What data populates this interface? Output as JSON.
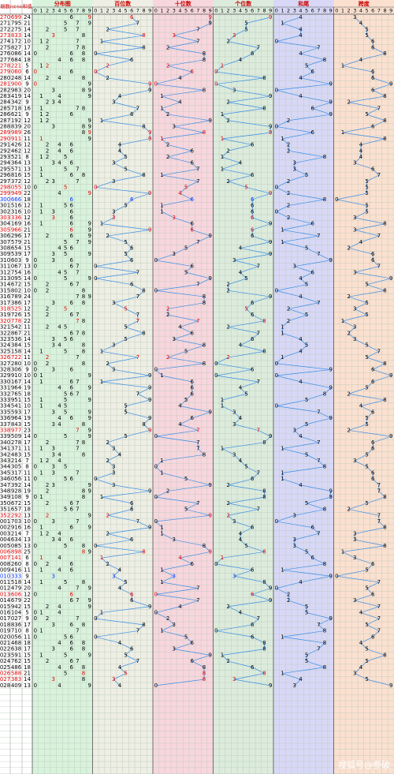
{
  "chart_data": {
    "type": "trend-table",
    "headers": {
      "period": "期数",
      "number": "开奖号码",
      "sum": "和值",
      "panels": [
        "分布图",
        "百位数",
        "十位数",
        "个位数",
        "和尾",
        "跨度"
      ]
    },
    "digits": [
      0,
      1,
      2,
      3,
      4,
      5,
      6,
      7,
      8,
      9
    ],
    "rows": [
      [
        "270",
        "699",
        24,
        6,
        9,
        9,
        4,
        3
      ],
      [
        "271",
        "795",
        21,
        7,
        9,
        5,
        1,
        4
      ],
      [
        "272",
        "275",
        14,
        2,
        7,
        5,
        4,
        5
      ],
      [
        "273",
        "833",
        14,
        8,
        3,
        3,
        4,
        5
      ],
      [
        "274",
        "172",
        10,
        1,
        7,
        2,
        0,
        6
      ],
      [
        "275",
        "827",
        17,
        8,
        2,
        7,
        7,
        6
      ],
      [
        "276",
        "086",
        14,
        0,
        8,
        6,
        4,
        8
      ],
      [
        "277",
        "684",
        18,
        6,
        8,
        4,
        8,
        4
      ],
      [
        "278",
        "221",
        5,
        2,
        2,
        1,
        5,
        1
      ],
      [
        "279",
        "060",
        6,
        0,
        6,
        0,
        6,
        6
      ],
      [
        "280",
        "248",
        14,
        2,
        4,
        8,
        4,
        6
      ],
      [
        "281",
        "900",
        9,
        9,
        0,
        0,
        9,
        9
      ],
      [
        "282",
        "983",
        20,
        9,
        8,
        3,
        0,
        6
      ],
      [
        "283",
        "419",
        14,
        4,
        1,
        9,
        4,
        8
      ],
      [
        "284",
        "342",
        9,
        3,
        4,
        2,
        9,
        2
      ],
      [
        "285",
        "718",
        16,
        7,
        1,
        8,
        6,
        7
      ],
      [
        "286",
        "621",
        9,
        6,
        2,
        1,
        9,
        5
      ],
      [
        "287",
        "192",
        12,
        1,
        9,
        2,
        2,
        8
      ],
      [
        "288",
        "839",
        20,
        8,
        3,
        9,
        0,
        6
      ],
      [
        "289",
        "989",
        26,
        9,
        8,
        9,
        6,
        1
      ],
      [
        "290",
        "911",
        11,
        9,
        1,
        1,
        1,
        8
      ],
      [
        "291",
        "426",
        12,
        4,
        2,
        6,
        2,
        4
      ],
      [
        "292",
        "462",
        12,
        4,
        6,
        2,
        2,
        4
      ],
      [
        "293",
        "521",
        8,
        5,
        2,
        1,
        8,
        4
      ],
      [
        "294",
        "364",
        13,
        3,
        6,
        4,
        3,
        3
      ],
      [
        "295",
        "571",
        13,
        5,
        7,
        1,
        3,
        6
      ],
      [
        "296",
        "816",
        15,
        8,
        1,
        6,
        5,
        7
      ],
      [
        "297",
        "372",
        12,
        3,
        7,
        2,
        2,
        5
      ],
      [
        "298",
        "055",
        10,
        0,
        5,
        5,
        0,
        5
      ],
      [
        "299",
        "949",
        22,
        9,
        4,
        9,
        2,
        5
      ],
      [
        "300",
        "666",
        18,
        6,
        6,
        6,
        8,
        0
      ],
      [
        "301",
        "516",
        12,
        5,
        1,
        6,
        2,
        5
      ],
      [
        "302",
        "316",
        10,
        3,
        1,
        6,
        0,
        5
      ],
      [
        "303",
        "336",
        12,
        3,
        3,
        6,
        2,
        3
      ],
      [
        "304",
        "169",
        16,
        1,
        6,
        9,
        6,
        8
      ],
      [
        "305",
        "966",
        21,
        9,
        6,
        6,
        1,
        3
      ],
      [
        "306",
        "296",
        17,
        2,
        9,
        6,
        7,
        7
      ],
      [
        "307",
        "579",
        21,
        5,
        7,
        9,
        1,
        4
      ],
      [
        "308",
        "654",
        15,
        6,
        5,
        4,
        5,
        2
      ],
      [
        "309",
        "539",
        17,
        5,
        3,
        9,
        7,
        6
      ],
      [
        "310",
        "603",
        9,
        6,
        0,
        3,
        9,
        6
      ],
      [
        "311",
        "067",
        13,
        0,
        6,
        7,
        3,
        7
      ],
      [
        "312",
        "754",
        16,
        7,
        5,
        4,
        6,
        3
      ],
      [
        "313",
        "095",
        14,
        0,
        9,
        5,
        4,
        9
      ],
      [
        "314",
        "672",
        15,
        6,
        7,
        2,
        5,
        5
      ],
      [
        "315",
        "802",
        10,
        8,
        0,
        2,
        0,
        8
      ],
      [
        "316",
        "789",
        24,
        7,
        8,
        9,
        4,
        2
      ],
      [
        "317",
        "386",
        17,
        3,
        8,
        6,
        7,
        5
      ],
      [
        "318",
        "525",
        12,
        5,
        2,
        5,
        2,
        3
      ],
      [
        "319",
        "726",
        15,
        7,
        2,
        6,
        5,
        5
      ],
      [
        "320",
        "778",
        22,
        7,
        7,
        8,
        2,
        1
      ],
      [
        "321",
        "542",
        11,
        5,
        4,
        2,
        1,
        3
      ],
      [
        "322",
        "867",
        21,
        8,
        6,
        7,
        1,
        2
      ],
      [
        "323",
        "536",
        14,
        5,
        3,
        6,
        4,
        3
      ],
      [
        "324",
        "384",
        15,
        3,
        8,
        4,
        5,
        5
      ],
      [
        "325",
        "158",
        14,
        1,
        5,
        8,
        4,
        7
      ],
      [
        "326",
        "722",
        11,
        7,
        2,
        2,
        1,
        5
      ],
      [
        "327",
        "280",
        10,
        2,
        8,
        0,
        0,
        8
      ],
      [
        "328",
        "306",
        9,
        3,
        0,
        6,
        9,
        6
      ],
      [
        "329",
        "910",
        10,
        9,
        1,
        0,
        0,
        9
      ],
      [
        "330",
        "167",
        14,
        1,
        6,
        7,
        4,
        6
      ],
      [
        "331",
        "964",
        19,
        9,
        6,
        4,
        9,
        5
      ],
      [
        "332",
        "765",
        18,
        7,
        6,
        5,
        8,
        2
      ],
      [
        "333",
        "951",
        15,
        9,
        5,
        1,
        5,
        8
      ],
      [
        "334",
        "541",
        10,
        5,
        4,
        1,
        0,
        4
      ],
      [
        "335",
        "593",
        17,
        5,
        9,
        3,
        7,
        6
      ],
      [
        "336",
        "964",
        19,
        9,
        6,
        4,
        9,
        5
      ],
      [
        "337",
        "843",
        15,
        8,
        4,
        3,
        5,
        5
      ],
      [
        "338",
        "977",
        23,
        9,
        7,
        7,
        3,
        2
      ],
      [
        "339",
        "509",
        14,
        5,
        0,
        9,
        4,
        9
      ],
      [
        "340",
        "278",
        17,
        2,
        7,
        8,
        7,
        6
      ],
      [
        "341",
        "371",
        11,
        3,
        7,
        1,
        1,
        6
      ],
      [
        "342",
        "483",
        15,
        4,
        8,
        3,
        5,
        5
      ],
      [
        "343",
        "214",
        7,
        2,
        1,
        4,
        7,
        3
      ],
      [
        "344",
        "305",
        8,
        3,
        0,
        5,
        8,
        5
      ],
      [
        "345",
        "317",
        11,
        3,
        1,
        7,
        1,
        6
      ],
      [
        "346",
        "056",
        11,
        0,
        5,
        6,
        1,
        6
      ],
      [
        "347",
        "392",
        14,
        3,
        9,
        2,
        4,
        7
      ],
      [
        "348",
        "928",
        19,
        9,
        2,
        8,
        9,
        7
      ],
      [
        "349",
        "108",
        9,
        1,
        0,
        8,
        9,
        8
      ],
      [
        "350",
        "672",
        15,
        6,
        7,
        2,
        5,
        5
      ],
      [
        "351",
        "657",
        18,
        6,
        5,
        7,
        8,
        2
      ],
      [
        "352",
        "292",
        13,
        2,
        9,
        2,
        3,
        7
      ],
      [
        "001",
        "703",
        10,
        7,
        0,
        3,
        0,
        7
      ],
      [
        "002",
        "916",
        16,
        9,
        1,
        6,
        6,
        8
      ],
      [
        "003",
        "214",
        7,
        2,
        1,
        4,
        7,
        3
      ],
      [
        "004",
        "634",
        13,
        6,
        3,
        4,
        3,
        3
      ],
      [
        "005",
        "085",
        13,
        0,
        8,
        5,
        3,
        8
      ],
      [
        "006",
        "898",
        25,
        8,
        9,
        8,
        5,
        1
      ],
      [
        "007",
        "141",
        6,
        1,
        4,
        1,
        6,
        3
      ],
      [
        "008",
        "260",
        8,
        2,
        6,
        0,
        8,
        6
      ],
      [
        "009",
        "416",
        11,
        4,
        1,
        6,
        1,
        5
      ],
      [
        "010",
        "333",
        9,
        3,
        3,
        3,
        9,
        0
      ],
      [
        "011",
        "518",
        14,
        5,
        1,
        8,
        4,
        7
      ],
      [
        "012",
        "479",
        20,
        4,
        7,
        9,
        0,
        5
      ],
      [
        "013",
        "606",
        12,
        6,
        0,
        6,
        2,
        6
      ],
      [
        "014",
        "679",
        22,
        6,
        7,
        9,
        2,
        3
      ],
      [
        "015",
        "942",
        15,
        9,
        4,
        2,
        5,
        7
      ],
      [
        "016",
        "104",
        5,
        1,
        0,
        4,
        5,
        4
      ],
      [
        "017",
        "027",
        9,
        0,
        2,
        7,
        9,
        7
      ],
      [
        "018",
        "836",
        17,
        8,
        3,
        6,
        7,
        5
      ],
      [
        "019",
        "710",
        8,
        7,
        1,
        0,
        8,
        7
      ],
      [
        "020",
        "056",
        11,
        0,
        5,
        6,
        1,
        6
      ],
      [
        "021",
        "468",
        18,
        4,
        6,
        8,
        8,
        4
      ],
      [
        "022",
        "638",
        17,
        6,
        3,
        8,
        7,
        5
      ],
      [
        "023",
        "591",
        15,
        5,
        9,
        1,
        5,
        8
      ],
      [
        "024",
        "762",
        15,
        7,
        6,
        2,
        5,
        5
      ],
      [
        "025",
        "486",
        18,
        4,
        8,
        6,
        8,
        4
      ],
      [
        "026",
        "588",
        21,
        5,
        8,
        8,
        1,
        3
      ],
      [
        "027",
        "383",
        14,
        3,
        8,
        3,
        4,
        5
      ],
      [
        "028",
        "409",
        13,
        4,
        0,
        9,
        3,
        9
      ]
    ],
    "watermark": "搜狐号@参破"
  }
}
